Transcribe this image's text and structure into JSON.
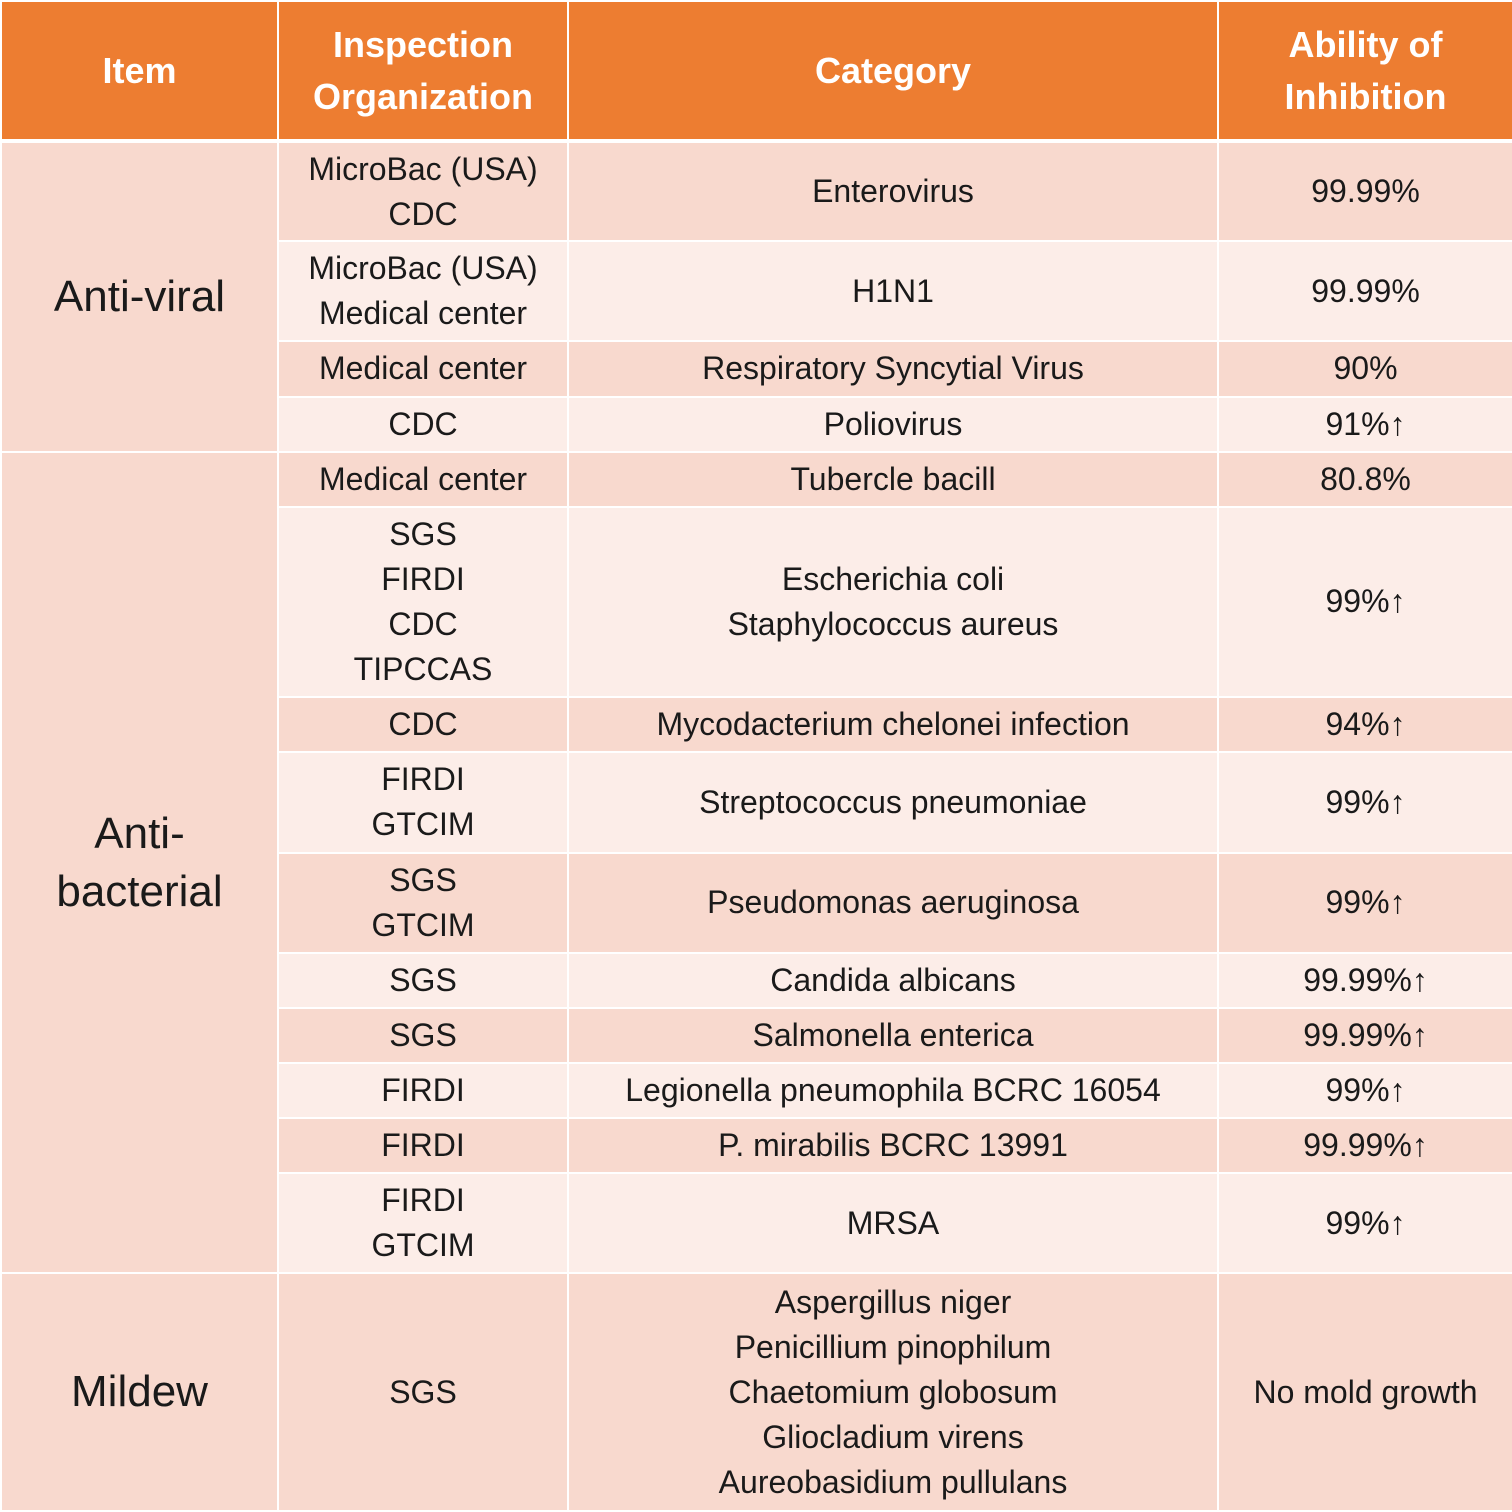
{
  "headers": [
    "Item",
    "Inspection Organization",
    "Category",
    "Ability of Inhibition"
  ],
  "groups": [
    {
      "item": "Anti-viral",
      "rows": [
        {
          "org": [
            "MicroBac (USA)",
            "CDC"
          ],
          "category": [
            "Enterovirus"
          ],
          "ability": "99.99%"
        },
        {
          "org": [
            "MicroBac (USA)",
            "Medical center"
          ],
          "category": [
            "H1N1"
          ],
          "ability": "99.99%"
        },
        {
          "org": [
            "Medical center"
          ],
          "category": [
            "Respiratory Syncytial Virus"
          ],
          "ability": "90%"
        },
        {
          "org": [
            "CDC"
          ],
          "category": [
            "Poliovirus"
          ],
          "ability": "91%↑"
        }
      ]
    },
    {
      "item": "Anti-bacterial",
      "rows": [
        {
          "org": [
            "Medical center"
          ],
          "category": [
            "Tubercle bacill"
          ],
          "ability": "80.8%"
        },
        {
          "org": [
            "SGS",
            "FIRDI",
            "CDC",
            "TIPCCAS"
          ],
          "category": [
            "Escherichia coli",
            "Staphylococcus aureus"
          ],
          "ability": "99%↑"
        },
        {
          "org": [
            "CDC"
          ],
          "category": [
            "Mycodacterium chelonei infection"
          ],
          "ability": "94%↑"
        },
        {
          "org": [
            "FIRDI",
            "GTCIM"
          ],
          "category": [
            "Streptococcus pneumoniae"
          ],
          "ability": "99%↑"
        },
        {
          "org": [
            "SGS",
            "GTCIM"
          ],
          "category": [
            "Pseudomonas aeruginosa"
          ],
          "ability": "99%↑"
        },
        {
          "org": [
            "SGS"
          ],
          "category": [
            "Candida albicans"
          ],
          "ability": "99.99%↑"
        },
        {
          "org": [
            "SGS"
          ],
          "category": [
            "Salmonella enterica"
          ],
          "ability": "99.99%↑"
        },
        {
          "org": [
            "FIRDI"
          ],
          "category": [
            "Legionella pneumophila BCRC 16054"
          ],
          "ability": "99%↑"
        },
        {
          "org": [
            "FIRDI"
          ],
          "category": [
            "P. mirabilis BCRC 13991"
          ],
          "ability": "99.99%↑"
        },
        {
          "org": [
            "FIRDI",
            "GTCIM"
          ],
          "category": [
            "MRSA"
          ],
          "ability": "99%↑"
        }
      ]
    },
    {
      "item": "Mildew",
      "rows": [
        {
          "org": [
            "SGS"
          ],
          "category": [
            "Aspergillus niger",
            "Penicillium pinophilum",
            "Chaetomium globosum",
            "Gliocladium virens",
            "Aureobasidium pullulans"
          ],
          "ability": "No mold growth"
        }
      ]
    }
  ],
  "colors": {
    "header_bg": "#ED7D31",
    "row_dark": "#F8D9CE",
    "row_light": "#FCEDE8",
    "header_text": "#FFFFFF"
  }
}
